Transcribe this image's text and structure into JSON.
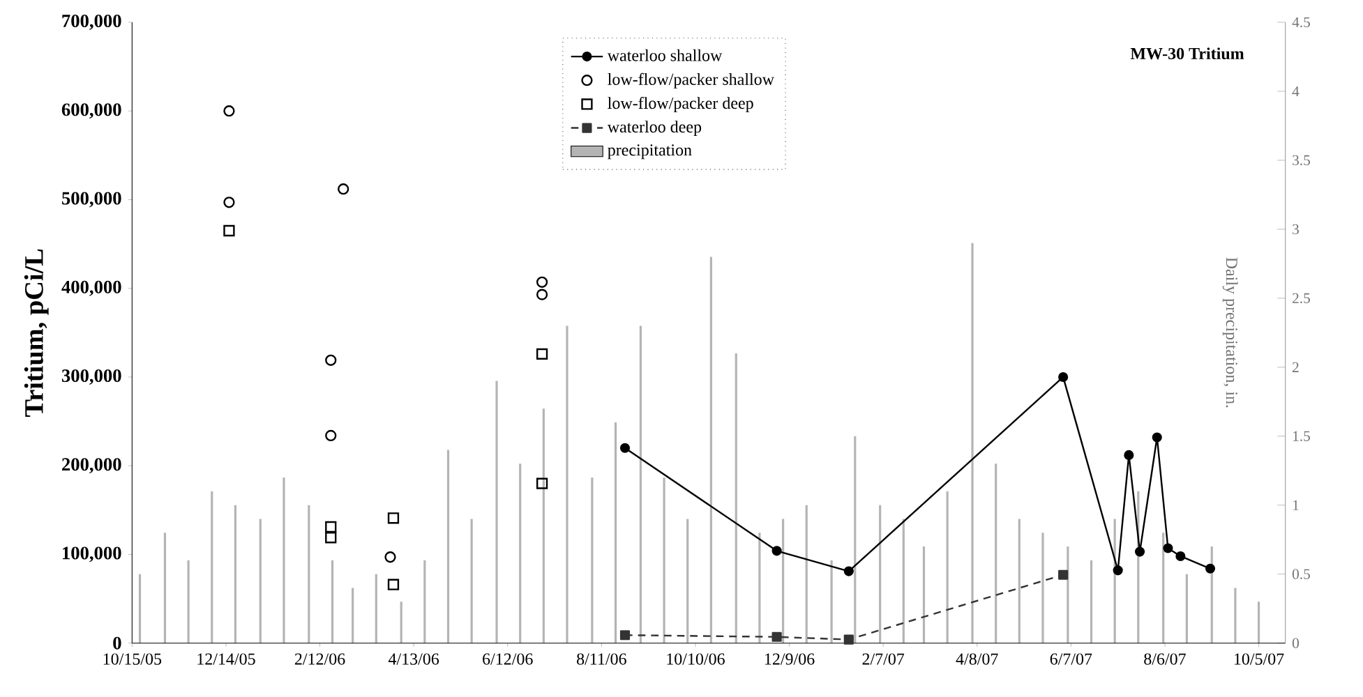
{
  "chart_data": {
    "type": "line",
    "title": "MW-30 Tritium",
    "ylabel": "Tritium, pCi/L",
    "y2label": "Daily precipitation, in.",
    "xlim": [
      "2005-10-15",
      "2007-10-22"
    ],
    "xticks": [
      {
        "value": "2005-10-15",
        "label": "10/15/05"
      },
      {
        "value": "2005-12-14",
        "label": "12/14/05"
      },
      {
        "value": "2006-02-12",
        "label": "2/12/06"
      },
      {
        "value": "2006-04-13",
        "label": "4/13/06"
      },
      {
        "value": "2006-06-12",
        "label": "6/12/06"
      },
      {
        "value": "2006-08-11",
        "label": "8/11/06"
      },
      {
        "value": "2006-10-10",
        "label": "10/10/06"
      },
      {
        "value": "2006-12-09",
        "label": "12/9/06"
      },
      {
        "value": "2007-02-07",
        "label": "2/7/07"
      },
      {
        "value": "2007-04-08",
        "label": "4/8/07"
      },
      {
        "value": "2007-06-07",
        "label": "6/7/07"
      },
      {
        "value": "2007-08-06",
        "label": "8/6/07"
      },
      {
        "value": "2007-10-05",
        "label": "10/5/07"
      }
    ],
    "ylim": [
      0,
      700000
    ],
    "yticks": [
      0,
      {
        "value": 100000,
        "label": "100,000"
      },
      {
        "value": 200000,
        "label": "200,000"
      },
      {
        "value": 300000,
        "label": "300,000"
      },
      {
        "value": 400000,
        "label": "400,000"
      },
      {
        "value": 500000,
        "label": "500,000"
      },
      {
        "value": 600000,
        "label": "600,000"
      },
      {
        "value": 700000,
        "label": "700,000"
      }
    ],
    "y2lim": [
      0,
      4.5
    ],
    "y2ticks": [
      0,
      0.5,
      1,
      1.5,
      2,
      2.5,
      3,
      3.5,
      4,
      4.5
    ],
    "legend": "top",
    "series": [
      {
        "name": "waterloo shallow",
        "marker": "circle",
        "line_style": "solid",
        "color": "#000000",
        "x": [
          "2006-08-26",
          "2006-12-01",
          "2007-01-16",
          "2007-06-02",
          "2007-07-07",
          "2007-07-14",
          "2007-07-21",
          "2007-08-01",
          "2007-08-08",
          "2007-08-16",
          "2007-09-04"
        ],
        "values": [
          220000,
          104000,
          81000,
          300000,
          82000,
          212000,
          103000,
          232000,
          107000,
          98000,
          84000
        ]
      },
      {
        "name": "low-flow/packer shallow",
        "type": "scatter",
        "marker": "circle",
        "color": "#000000",
        "x": [
          "2005-12-16",
          "2005-12-16",
          "2006-02-27",
          "2006-02-19",
          "2006-02-19",
          "2006-03-29",
          "2006-07-04",
          "2006-07-04"
        ],
        "values": [
          600000,
          497000,
          512000,
          319000,
          234000,
          97000,
          407000,
          393000
        ]
      },
      {
        "name": "low-flow/packer deep",
        "type": "scatter",
        "marker": "square",
        "color": "#000000",
        "x": [
          "2005-12-16",
          "2006-02-19",
          "2006-02-19",
          "2006-03-31",
          "2006-03-31",
          "2006-07-04",
          "2006-07-04"
        ],
        "values": [
          465000,
          131000,
          119000,
          141000,
          66000,
          326000,
          180000
        ]
      },
      {
        "name": "waterloo deep",
        "marker": "square",
        "line_style": "dashed",
        "color": "#333333",
        "x": [
          "2006-08-26",
          "2006-12-01",
          "2007-01-16",
          "2007-06-02"
        ],
        "values": [
          9000,
          7000,
          4000,
          77000
        ]
      },
      {
        "name": "precipitation",
        "type": "bar",
        "axis": "y2",
        "color": "#b4b4b4",
        "x": [
          "2005-10-20",
          "2005-11-05",
          "2005-11-20",
          "2005-12-05",
          "2005-12-20",
          "2006-01-05",
          "2006-01-20",
          "2006-02-05",
          "2006-02-20",
          "2006-03-05",
          "2006-03-20",
          "2006-04-05",
          "2006-04-20",
          "2006-05-05",
          "2006-05-20",
          "2006-06-05",
          "2006-06-20",
          "2006-07-05",
          "2006-07-20",
          "2006-08-05",
          "2006-08-20",
          "2006-09-05",
          "2006-09-20",
          "2006-10-05",
          "2006-10-20",
          "2006-11-05",
          "2006-11-20",
          "2006-12-05",
          "2006-12-20",
          "2007-01-05",
          "2007-01-20",
          "2007-02-05",
          "2007-02-20",
          "2007-03-05",
          "2007-03-20",
          "2007-04-05",
          "2007-04-20",
          "2007-05-05",
          "2007-05-20",
          "2007-06-05",
          "2007-06-20",
          "2007-07-05",
          "2007-07-20",
          "2007-08-05",
          "2007-08-20",
          "2007-09-05",
          "2007-09-20",
          "2007-10-05"
        ],
        "values": [
          0.5,
          0.8,
          0.6,
          1.1,
          1.0,
          0.9,
          1.2,
          1.0,
          0.6,
          0.4,
          0.5,
          0.3,
          0.6,
          1.4,
          0.9,
          1.9,
          1.3,
          1.7,
          2.3,
          1.2,
          1.6,
          2.3,
          1.2,
          0.9,
          2.8,
          2.1,
          0.8,
          0.9,
          1.0,
          0.6,
          1.5,
          1.0,
          0.9,
          0.7,
          1.1,
          2.9,
          1.3,
          0.9,
          0.8,
          0.7,
          0.6,
          0.9,
          1.1,
          0.8,
          0.5,
          0.7,
          0.4,
          0.3
        ]
      }
    ]
  }
}
